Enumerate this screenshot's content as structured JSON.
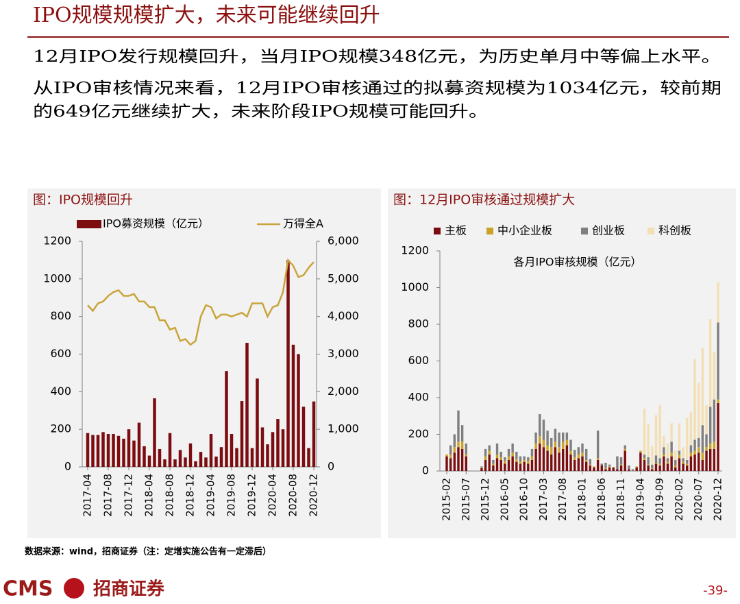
{
  "header": {
    "title": "IPO规模规模扩大，未来可能继续回升"
  },
  "body": [
    "12月IPO发行规模回升，当月IPO规模348亿元，为历史单月中等偏上水平。",
    "从IPO审核情况来看，12月IPO审核通过的拟募资规模为1034亿元，较前期",
    "的649亿元继续扩大，未来阶段IPO规模可能回升。"
  ],
  "chart_data": [
    {
      "type": "combo",
      "title": "图：IPO规模回升",
      "legend": "top",
      "categories": [
        "2017-04",
        null,
        null,
        null,
        "2017-08",
        null,
        null,
        null,
        "2017-12",
        null,
        null,
        null,
        "2018-04",
        null,
        null,
        null,
        "2018-08",
        null,
        null,
        null,
        "2018-12",
        null,
        null,
        null,
        "2019-04",
        null,
        null,
        null,
        "2019-08",
        null,
        null,
        null,
        "2019-12",
        null,
        null,
        null,
        "2020-04",
        null,
        null,
        null,
        "2020-08",
        null,
        null,
        null,
        "2020-12"
      ],
      "series": [
        {
          "name": "IPO募资规模（亿元）",
          "type": "bar",
          "color": "#7b0c10",
          "values": [
            180,
            170,
            170,
            185,
            175,
            175,
            165,
            150,
            200,
            140,
            235,
            110,
            60,
            365,
            95,
            40,
            180,
            40,
            90,
            50,
            125,
            30,
            80,
            50,
            175,
            55,
            105,
            510,
            175,
            100,
            350,
            660,
            100,
            470,
            210,
            120,
            185,
            255,
            200,
            1100,
            650,
            600,
            320,
            100,
            348
          ]
        },
        {
          "name": "万得全A",
          "type": "line",
          "axis": "y2",
          "color": "#c9a43a",
          "values": [
            4300,
            4150,
            4350,
            4400,
            4550,
            4650,
            4700,
            4550,
            4550,
            4600,
            4400,
            4400,
            4250,
            4250,
            3900,
            3900,
            3650,
            3700,
            3350,
            3400,
            3250,
            3350,
            4000,
            4300,
            4250,
            3950,
            4050,
            4050,
            4000,
            4050,
            4100,
            4000,
            4350,
            4350,
            4350,
            4000,
            4250,
            4300,
            4650,
            5500,
            5350,
            5050,
            5100,
            5300,
            5450
          ]
        }
      ],
      "ylim": [
        0,
        1200
      ],
      "yticks": [
        0,
        200,
        400,
        600,
        800,
        1000,
        1200
      ],
      "y2lim": [
        0,
        6000
      ],
      "y2ticks": [
        0,
        {
          "value": 1000,
          "label": "1,000"
        },
        {
          "value": 2000,
          "label": "2,000"
        },
        {
          "value": 3000,
          "label": "3,000"
        },
        {
          "value": 4000,
          "label": "4,000"
        },
        {
          "value": 5000,
          "label": "5,000"
        },
        {
          "value": 6000,
          "label": "6,000"
        }
      ],
      "grid": false
    },
    {
      "type": "stacked_bar",
      "title": "图：12月IPO审核通过规模扩大",
      "subtitle": "各月IPO审核规模（亿元）",
      "legend": "top",
      "categories": [
        "2015-02",
        null,
        null,
        null,
        null,
        "2015-07",
        null,
        null,
        null,
        null,
        "2015-12",
        null,
        null,
        null,
        null,
        "2016-05",
        null,
        null,
        null,
        null,
        "2016-10",
        null,
        null,
        null,
        null,
        "2017-03",
        null,
        null,
        null,
        null,
        "2017-08",
        null,
        null,
        null,
        null,
        "2018-01",
        null,
        null,
        null,
        null,
        "2018-06",
        null,
        null,
        null,
        null,
        "2018-11",
        null,
        null,
        null,
        null,
        "2019-04",
        null,
        null,
        null,
        null,
        "2019-09",
        null,
        null,
        null,
        null,
        "2020-02",
        null,
        null,
        null,
        null,
        "2020-07",
        null,
        null,
        null,
        null,
        "2020-12"
      ],
      "series": [
        {
          "name": "主板",
          "color": "#7b0c10",
          "values": [
            80,
            70,
            100,
            130,
            120,
            80,
            0,
            0,
            0,
            15,
            60,
            90,
            30,
            70,
            60,
            40,
            60,
            80,
            50,
            40,
            50,
            40,
            60,
            120,
            150,
            130,
            110,
            90,
            130,
            100,
            120,
            140,
            90,
            60,
            70,
            80,
            50,
            30,
            20,
            60,
            30,
            10,
            20,
            20,
            10,
            30,
            110,
            10,
            0,
            20,
            100,
            60,
            30,
            10,
            40,
            30,
            80,
            40,
            80,
            20,
            70,
            40,
            30,
            80,
            90,
            100,
            60,
            110,
            120,
            120,
            370
          ]
        },
        {
          "name": "中小企业板",
          "color": "#c9a227",
          "values": [
            10,
            20,
            30,
            30,
            40,
            10,
            0,
            0,
            0,
            5,
            20,
            20,
            10,
            20,
            15,
            15,
            20,
            20,
            15,
            10,
            10,
            15,
            20,
            30,
            40,
            40,
            30,
            40,
            30,
            30,
            40,
            30,
            20,
            15,
            20,
            20,
            10,
            5,
            5,
            10,
            0,
            5,
            5,
            0,
            0,
            5,
            10,
            0,
            0,
            5,
            10,
            10,
            5,
            5,
            5,
            10,
            10,
            10,
            20,
            10,
            20,
            10,
            10,
            20,
            20,
            30,
            40,
            20,
            30,
            40,
            20
          ]
        },
        {
          "name": "创业板",
          "color": "#7f7f7f",
          "values": [
            0,
            50,
            70,
            170,
            90,
            60,
            0,
            0,
            0,
            5,
            40,
            30,
            20,
            60,
            30,
            20,
            40,
            50,
            40,
            30,
            20,
            20,
            40,
            60,
            120,
            110,
            80,
            50,
            70,
            80,
            50,
            40,
            60,
            40,
            40,
            50,
            60,
            30,
            0,
            150,
            10,
            30,
            10,
            0,
            70,
            40,
            20,
            20,
            10,
            0,
            0,
            20,
            40,
            20,
            40,
            30,
            40,
            20,
            60,
            30,
            20,
            20,
            20,
            40,
            60,
            50,
            150,
            70,
            200,
            230,
            420
          ]
        },
        {
          "name": "科创板",
          "color": "#f2dfb4",
          "values": [
            0,
            0,
            0,
            0,
            0,
            0,
            0,
            0,
            0,
            0,
            0,
            0,
            0,
            0,
            0,
            0,
            0,
            0,
            0,
            0,
            0,
            0,
            0,
            0,
            0,
            0,
            0,
            0,
            0,
            0,
            0,
            0,
            0,
            0,
            0,
            0,
            0,
            0,
            0,
            0,
            0,
            0,
            0,
            0,
            0,
            0,
            0,
            0,
            0,
            0,
            0,
            250,
            180,
            100,
            220,
            290,
            60,
            80,
            100,
            50,
            150,
            60,
            230,
            180,
            440,
            300,
            420,
            160,
            480,
            260,
            220
          ]
        }
      ],
      "ylim": [
        0,
        1200
      ],
      "yticks": [
        0,
        200,
        400,
        600,
        800,
        1000,
        1200
      ],
      "grid": false
    }
  ],
  "source": "数据来源：wind，招商证券（注：定增实施公告有一定滞后）",
  "footer": {
    "brand_en": "CMS",
    "brand_cn": "招商证券",
    "page": "-39-"
  }
}
